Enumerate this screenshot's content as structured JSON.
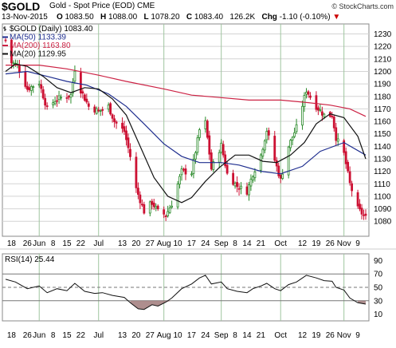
{
  "header": {
    "symbol": "$GOLD",
    "description": "Gold - Spot Price (EOD)",
    "exchange": "CME",
    "logo": "© StockCharts.com",
    "date": "13-Nov-2015",
    "open_label": "O",
    "open": "1083.50",
    "high_label": "H",
    "high": "1088.00",
    "low_label": "L",
    "low": "1078.20",
    "close_label": "C",
    "close": "1083.40",
    "volume": "126.2K",
    "chg_label": "Chg",
    "chg": "-1.10 (-0.10%)",
    "down_arrow": "▼"
  },
  "colors": {
    "up": "#2a8a2a",
    "down": "#cc1133",
    "ma50": "#1f2e8f",
    "ma200": "#cc2244",
    "ma20": "#111111",
    "grid": "#d4d4d4",
    "vgrid": "#9fc59f",
    "rsi": "#111111",
    "rsi_fill": "#a07a7a"
  },
  "chart_data": [
    {
      "type": "candlestick",
      "legend": [
        {
          "label": "$GOLD (Daily) 1083.40",
          "icon": "bar-icon"
        },
        {
          "label": "MA(50) 1133.39",
          "color": "#1f2e8f"
        },
        {
          "label": "MA(200) 1163.80",
          "color": "#cc2244"
        },
        {
          "label": "MA(20) 1129.95",
          "color": "#111111"
        }
      ],
      "ylim": [
        1068,
        1238
      ],
      "yticks": [
        1080,
        1090,
        1100,
        1110,
        1120,
        1130,
        1140,
        1150,
        1160,
        1170,
        1180,
        1190,
        1200,
        1210,
        1220,
        1230
      ],
      "x_start": "2015-05-15",
      "x_end": "2015-11-13",
      "xticks": [
        {
          "label": "18",
          "date": "2015-05-18"
        },
        {
          "label": "26",
          "date": "2015-05-26"
        },
        {
          "label": "Jun",
          "date": "2015-06-01"
        },
        {
          "label": "8",
          "date": "2015-06-08"
        },
        {
          "label": "15",
          "date": "2015-06-15"
        },
        {
          "label": "22",
          "date": "2015-06-22"
        },
        {
          "label": "Jul",
          "date": "2015-07-01"
        },
        {
          "label": "13",
          "date": "2015-07-13"
        },
        {
          "label": "20",
          "date": "2015-07-20"
        },
        {
          "label": "27",
          "date": "2015-07-27"
        },
        {
          "label": "Aug",
          "date": "2015-08-03"
        },
        {
          "label": "10",
          "date": "2015-08-10"
        },
        {
          "label": "17",
          "date": "2015-08-17"
        },
        {
          "label": "24",
          "date": "2015-08-24"
        },
        {
          "label": "Sep",
          "date": "2015-09-01"
        },
        {
          "label": "8",
          "date": "2015-09-08"
        },
        {
          "label": "14",
          "date": "2015-09-14"
        },
        {
          "label": "21",
          "date": "2015-09-21"
        },
        {
          "label": "Oct",
          "date": "2015-10-01"
        },
        {
          "label": "12",
          "date": "2015-10-12"
        },
        {
          "label": "19",
          "date": "2015-10-19"
        },
        {
          "label": "26",
          "date": "2015-10-26"
        },
        {
          "label": "Nov",
          "date": "2015-11-02"
        },
        {
          "label": "9",
          "date": "2015-11-09"
        }
      ],
      "month_lines": [
        "2015-06-01",
        "2015-07-01",
        "2015-08-03",
        "2015-09-01",
        "2015-10-01",
        "2015-11-02"
      ],
      "price_path": [
        [
          "2015-05-15",
          1225
        ],
        [
          "2015-05-18",
          1207
        ],
        [
          "2015-05-21",
          1205
        ],
        [
          "2015-05-26",
          1186
        ],
        [
          "2015-06-01",
          1191
        ],
        [
          "2015-06-05",
          1170
        ],
        [
          "2015-06-09",
          1177
        ],
        [
          "2015-06-12",
          1179
        ],
        [
          "2015-06-17",
          1181
        ],
        [
          "2015-06-19",
          1202
        ],
        [
          "2015-06-22",
          1185
        ],
        [
          "2015-06-26",
          1172
        ],
        [
          "2015-07-01",
          1168
        ],
        [
          "2015-07-06",
          1172
        ],
        [
          "2015-07-09",
          1160
        ],
        [
          "2015-07-14",
          1152
        ],
        [
          "2015-07-17",
          1132
        ],
        [
          "2015-07-20",
          1106
        ],
        [
          "2015-07-24",
          1088
        ],
        [
          "2015-07-28",
          1095
        ],
        [
          "2015-07-31",
          1088
        ],
        [
          "2015-08-04",
          1085
        ],
        [
          "2015-08-07",
          1094
        ],
        [
          "2015-08-12",
          1120
        ],
        [
          "2015-08-17",
          1119
        ],
        [
          "2015-08-21",
          1153
        ],
        [
          "2015-08-24",
          1159
        ],
        [
          "2015-08-27",
          1122
        ],
        [
          "2015-09-01",
          1141
        ],
        [
          "2015-09-04",
          1118
        ],
        [
          "2015-09-09",
          1108
        ],
        [
          "2015-09-14",
          1104
        ],
        [
          "2015-09-17",
          1118
        ],
        [
          "2015-09-21",
          1133
        ],
        [
          "2015-09-24",
          1153
        ],
        [
          "2015-09-28",
          1129
        ],
        [
          "2015-10-01",
          1113
        ],
        [
          "2015-10-05",
          1140
        ],
        [
          "2015-10-09",
          1155
        ],
        [
          "2015-10-14",
          1185
        ],
        [
          "2015-10-19",
          1172
        ],
        [
          "2015-10-23",
          1165
        ],
        [
          "2015-10-27",
          1165
        ],
        [
          "2015-10-29",
          1147
        ],
        [
          "2015-11-02",
          1134
        ],
        [
          "2015-11-05",
          1110
        ],
        [
          "2015-11-09",
          1090
        ],
        [
          "2015-11-13",
          1083
        ]
      ],
      "ma50": [
        [
          "2015-05-15",
          1198
        ],
        [
          "2015-05-26",
          1200
        ],
        [
          "2015-06-05",
          1196
        ],
        [
          "2015-06-15",
          1192
        ],
        [
          "2015-06-25",
          1189
        ],
        [
          "2015-07-06",
          1182
        ],
        [
          "2015-07-15",
          1172
        ],
        [
          "2015-07-24",
          1158
        ],
        [
          "2015-08-03",
          1142
        ],
        [
          "2015-08-12",
          1132
        ],
        [
          "2015-08-21",
          1127
        ],
        [
          "2015-09-01",
          1127
        ],
        [
          "2015-09-10",
          1125
        ],
        [
          "2015-09-21",
          1120
        ],
        [
          "2015-10-01",
          1118
        ],
        [
          "2015-10-12",
          1124
        ],
        [
          "2015-10-21",
          1136
        ],
        [
          "2015-11-02",
          1143
        ],
        [
          "2015-11-13",
          1133
        ]
      ],
      "ma200": [
        [
          "2015-05-15",
          1205
        ],
        [
          "2015-06-01",
          1205
        ],
        [
          "2015-06-15",
          1202
        ],
        [
          "2015-07-01",
          1197
        ],
        [
          "2015-07-15",
          1192
        ],
        [
          "2015-08-03",
          1186
        ],
        [
          "2015-08-17",
          1181
        ],
        [
          "2015-09-01",
          1179
        ],
        [
          "2015-09-15",
          1177
        ],
        [
          "2015-10-01",
          1177
        ],
        [
          "2015-10-15",
          1175
        ],
        [
          "2015-10-26",
          1173
        ],
        [
          "2015-11-05",
          1170
        ],
        [
          "2015-11-13",
          1164
        ]
      ],
      "ma20": [
        [
          "2015-05-15",
          1200
        ],
        [
          "2015-05-20",
          1206
        ],
        [
          "2015-05-26",
          1204
        ],
        [
          "2015-06-03",
          1196
        ],
        [
          "2015-06-10",
          1187
        ],
        [
          "2015-06-17",
          1183
        ],
        [
          "2015-06-24",
          1187
        ],
        [
          "2015-07-01",
          1186
        ],
        [
          "2015-07-08",
          1178
        ],
        [
          "2015-07-15",
          1165
        ],
        [
          "2015-07-22",
          1140
        ],
        [
          "2015-07-29",
          1115
        ],
        [
          "2015-08-05",
          1100
        ],
        [
          "2015-08-12",
          1095
        ],
        [
          "2015-08-17",
          1099
        ],
        [
          "2015-08-24",
          1112
        ],
        [
          "2015-08-31",
          1123
        ],
        [
          "2015-09-08",
          1133
        ],
        [
          "2015-09-15",
          1133
        ],
        [
          "2015-09-22",
          1128
        ],
        [
          "2015-09-29",
          1127
        ],
        [
          "2015-10-06",
          1133
        ],
        [
          "2015-10-13",
          1143
        ],
        [
          "2015-10-19",
          1158
        ],
        [
          "2015-10-26",
          1166
        ],
        [
          "2015-11-02",
          1163
        ],
        [
          "2015-11-09",
          1148
        ],
        [
          "2015-11-13",
          1130
        ]
      ]
    },
    {
      "type": "line",
      "title": "RSI(14) 25.44",
      "ylim": [
        0,
        100
      ],
      "yticks": [
        10,
        30,
        50,
        70,
        90
      ],
      "ref_lines": [
        30,
        50,
        70
      ],
      "values": [
        [
          "2015-05-15",
          62
        ],
        [
          "2015-05-20",
          58
        ],
        [
          "2015-05-26",
          48
        ],
        [
          "2015-06-01",
          52
        ],
        [
          "2015-06-05",
          42
        ],
        [
          "2015-06-10",
          48
        ],
        [
          "2015-06-15",
          45
        ],
        [
          "2015-06-19",
          56
        ],
        [
          "2015-06-24",
          44
        ],
        [
          "2015-06-29",
          41
        ],
        [
          "2015-07-03",
          42
        ],
        [
          "2015-07-08",
          38
        ],
        [
          "2015-07-14",
          35
        ],
        [
          "2015-07-17",
          27
        ],
        [
          "2015-07-21",
          18
        ],
        [
          "2015-07-24",
          17
        ],
        [
          "2015-07-28",
          24
        ],
        [
          "2015-07-31",
          22
        ],
        [
          "2015-08-04",
          28
        ],
        [
          "2015-08-07",
          34
        ],
        [
          "2015-08-12",
          48
        ],
        [
          "2015-08-17",
          55
        ],
        [
          "2015-08-21",
          64
        ],
        [
          "2015-08-24",
          68
        ],
        [
          "2015-08-27",
          55
        ],
        [
          "2015-09-01",
          58
        ],
        [
          "2015-09-04",
          48
        ],
        [
          "2015-09-09",
          44
        ],
        [
          "2015-09-14",
          42
        ],
        [
          "2015-09-17",
          48
        ],
        [
          "2015-09-21",
          52
        ],
        [
          "2015-09-24",
          56
        ],
        [
          "2015-09-28",
          48
        ],
        [
          "2015-10-01",
          45
        ],
        [
          "2015-10-05",
          54
        ],
        [
          "2015-10-09",
          58
        ],
        [
          "2015-10-14",
          68
        ],
        [
          "2015-10-19",
          64
        ],
        [
          "2015-10-23",
          60
        ],
        [
          "2015-10-27",
          59
        ],
        [
          "2015-10-29",
          50
        ],
        [
          "2015-11-02",
          46
        ],
        [
          "2015-11-05",
          34
        ],
        [
          "2015-11-09",
          27
        ],
        [
          "2015-11-13",
          25
        ]
      ]
    }
  ]
}
